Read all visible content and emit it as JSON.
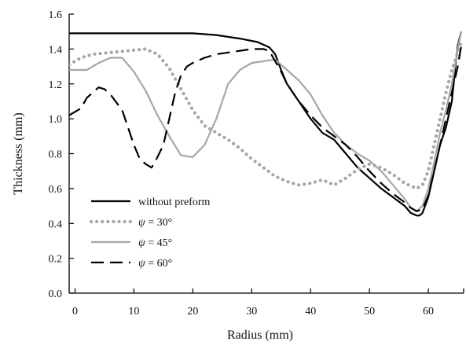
{
  "chart_data": {
    "type": "line",
    "xlabel": "Radius (mm)",
    "ylabel": "Thickness (mm)",
    "xlim": [
      -1,
      66
    ],
    "ylim": [
      0.0,
      1.6
    ],
    "xticks": [
      0,
      10,
      20,
      30,
      40,
      50,
      60
    ],
    "yticks": [
      0.0,
      0.2,
      0.4,
      0.6,
      0.8,
      1.0,
      1.2,
      1.4,
      1.6
    ],
    "xtick_labels": [
      "0",
      "10",
      "20",
      "30",
      "40",
      "50",
      "60"
    ],
    "ytick_labels": [
      "0.0",
      "0.2",
      "0.4",
      "0.6",
      "0.8",
      "1.0",
      "1.2",
      "1.4",
      "1.6"
    ],
    "grid": false,
    "legend_position": "bottom-left",
    "legend": [
      {
        "symbol": "",
        "rest": "without preform"
      },
      {
        "symbol": "ψ",
        "rest": " = 30°"
      },
      {
        "symbol": "ψ",
        "rest": " = 45°"
      },
      {
        "symbol": "ψ",
        "rest": " = 60°"
      }
    ],
    "series": [
      {
        "color": "#000000",
        "style": "solid",
        "points": [
          [
            -1,
            1.49
          ],
          [
            5,
            1.49
          ],
          [
            10,
            1.49
          ],
          [
            15,
            1.49
          ],
          [
            20,
            1.49
          ],
          [
            24,
            1.48
          ],
          [
            28,
            1.46
          ],
          [
            31,
            1.44
          ],
          [
            33,
            1.41
          ],
          [
            34,
            1.37
          ],
          [
            35,
            1.28
          ],
          [
            36,
            1.2
          ],
          [
            38,
            1.1
          ],
          [
            40,
            1.0
          ],
          [
            42,
            0.92
          ],
          [
            44,
            0.88
          ],
          [
            46,
            0.8
          ],
          [
            48,
            0.72
          ],
          [
            50,
            0.66
          ],
          [
            52,
            0.6
          ],
          [
            54,
            0.55
          ],
          [
            56,
            0.5
          ],
          [
            57,
            0.46
          ],
          [
            58,
            0.445
          ],
          [
            58.5,
            0.445
          ],
          [
            59,
            0.46
          ],
          [
            60,
            0.55
          ],
          [
            61,
            0.7
          ],
          [
            62,
            0.85
          ],
          [
            63,
            0.95
          ],
          [
            64,
            1.1
          ],
          [
            64.6,
            1.3
          ],
          [
            65,
            1.42
          ],
          [
            65.6,
            1.5
          ]
        ]
      },
      {
        "color": "#a6a6a6",
        "style": "dotted",
        "points": [
          [
            -1,
            1.31
          ],
          [
            1,
            1.35
          ],
          [
            3,
            1.37
          ],
          [
            6,
            1.38
          ],
          [
            9,
            1.39
          ],
          [
            12,
            1.4
          ],
          [
            14,
            1.37
          ],
          [
            16,
            1.29
          ],
          [
            18,
            1.17
          ],
          [
            20,
            1.05
          ],
          [
            22,
            0.96
          ],
          [
            24,
            0.92
          ],
          [
            26,
            0.88
          ],
          [
            28,
            0.83
          ],
          [
            30,
            0.77
          ],
          [
            32,
            0.72
          ],
          [
            34,
            0.67
          ],
          [
            36,
            0.64
          ],
          [
            38,
            0.62
          ],
          [
            40,
            0.63
          ],
          [
            42,
            0.65
          ],
          [
            44,
            0.62
          ],
          [
            46,
            0.66
          ],
          [
            48,
            0.71
          ],
          [
            50,
            0.74
          ],
          [
            52,
            0.72
          ],
          [
            54,
            0.68
          ],
          [
            56,
            0.63
          ],
          [
            58,
            0.6
          ],
          [
            59,
            0.62
          ],
          [
            60,
            0.7
          ],
          [
            61,
            0.85
          ],
          [
            62,
            1.0
          ],
          [
            63,
            1.15
          ],
          [
            64,
            1.28
          ],
          [
            65,
            1.38
          ],
          [
            65.6,
            1.44
          ]
        ]
      },
      {
        "color": "#a6a6a6",
        "style": "solid",
        "points": [
          [
            -1,
            1.28
          ],
          [
            0,
            1.28
          ],
          [
            2,
            1.28
          ],
          [
            4,
            1.32
          ],
          [
            6,
            1.35
          ],
          [
            7,
            1.35
          ],
          [
            8,
            1.35
          ],
          [
            10,
            1.27
          ],
          [
            12,
            1.16
          ],
          [
            14,
            1.02
          ],
          [
            16,
            0.9
          ],
          [
            18,
            0.79
          ],
          [
            20,
            0.78
          ],
          [
            22,
            0.85
          ],
          [
            24,
            1.0
          ],
          [
            26,
            1.2
          ],
          [
            28,
            1.28
          ],
          [
            30,
            1.32
          ],
          [
            32,
            1.33
          ],
          [
            34,
            1.34
          ],
          [
            36,
            1.28
          ],
          [
            38,
            1.22
          ],
          [
            40,
            1.14
          ],
          [
            42,
            1.02
          ],
          [
            44,
            0.92
          ],
          [
            46,
            0.85
          ],
          [
            48,
            0.8
          ],
          [
            50,
            0.76
          ],
          [
            52,
            0.7
          ],
          [
            54,
            0.62
          ],
          [
            56,
            0.54
          ],
          [
            57,
            0.49
          ],
          [
            58,
            0.47
          ],
          [
            59,
            0.5
          ],
          [
            60,
            0.6
          ],
          [
            61,
            0.75
          ],
          [
            62,
            0.92
          ],
          [
            63,
            1.05
          ],
          [
            64,
            1.2
          ],
          [
            64.6,
            1.32
          ],
          [
            65,
            1.4
          ],
          [
            65.6,
            1.5
          ]
        ]
      },
      {
        "color": "#000000",
        "style": "dashed",
        "points": [
          [
            -1,
            1.02
          ],
          [
            1,
            1.06
          ],
          [
            2,
            1.12
          ],
          [
            4,
            1.18
          ],
          [
            5,
            1.17
          ],
          [
            6,
            1.14
          ],
          [
            8,
            1.05
          ],
          [
            10,
            0.85
          ],
          [
            11,
            0.77
          ],
          [
            12,
            0.74
          ],
          [
            13,
            0.72
          ],
          [
            14,
            0.78
          ],
          [
            15,
            0.85
          ],
          [
            16,
            1.0
          ],
          [
            17,
            1.15
          ],
          [
            18,
            1.25
          ],
          [
            19,
            1.3
          ],
          [
            20,
            1.32
          ],
          [
            22,
            1.35
          ],
          [
            24,
            1.37
          ],
          [
            26,
            1.38
          ],
          [
            28,
            1.39
          ],
          [
            30,
            1.4
          ],
          [
            32,
            1.4
          ],
          [
            33,
            1.39
          ],
          [
            34,
            1.33
          ],
          [
            35,
            1.27
          ],
          [
            36,
            1.2
          ],
          [
            38,
            1.1
          ],
          [
            40,
            1.02
          ],
          [
            42,
            0.95
          ],
          [
            44,
            0.9
          ],
          [
            46,
            0.85
          ],
          [
            48,
            0.78
          ],
          [
            50,
            0.7
          ],
          [
            52,
            0.63
          ],
          [
            54,
            0.57
          ],
          [
            56,
            0.52
          ],
          [
            57,
            0.49
          ],
          [
            58,
            0.47
          ],
          [
            59,
            0.48
          ],
          [
            60,
            0.56
          ],
          [
            61,
            0.7
          ],
          [
            62,
            0.85
          ],
          [
            63,
            1.0
          ],
          [
            64,
            1.15
          ],
          [
            65,
            1.3
          ],
          [
            65.6,
            1.42
          ]
        ]
      }
    ]
  }
}
